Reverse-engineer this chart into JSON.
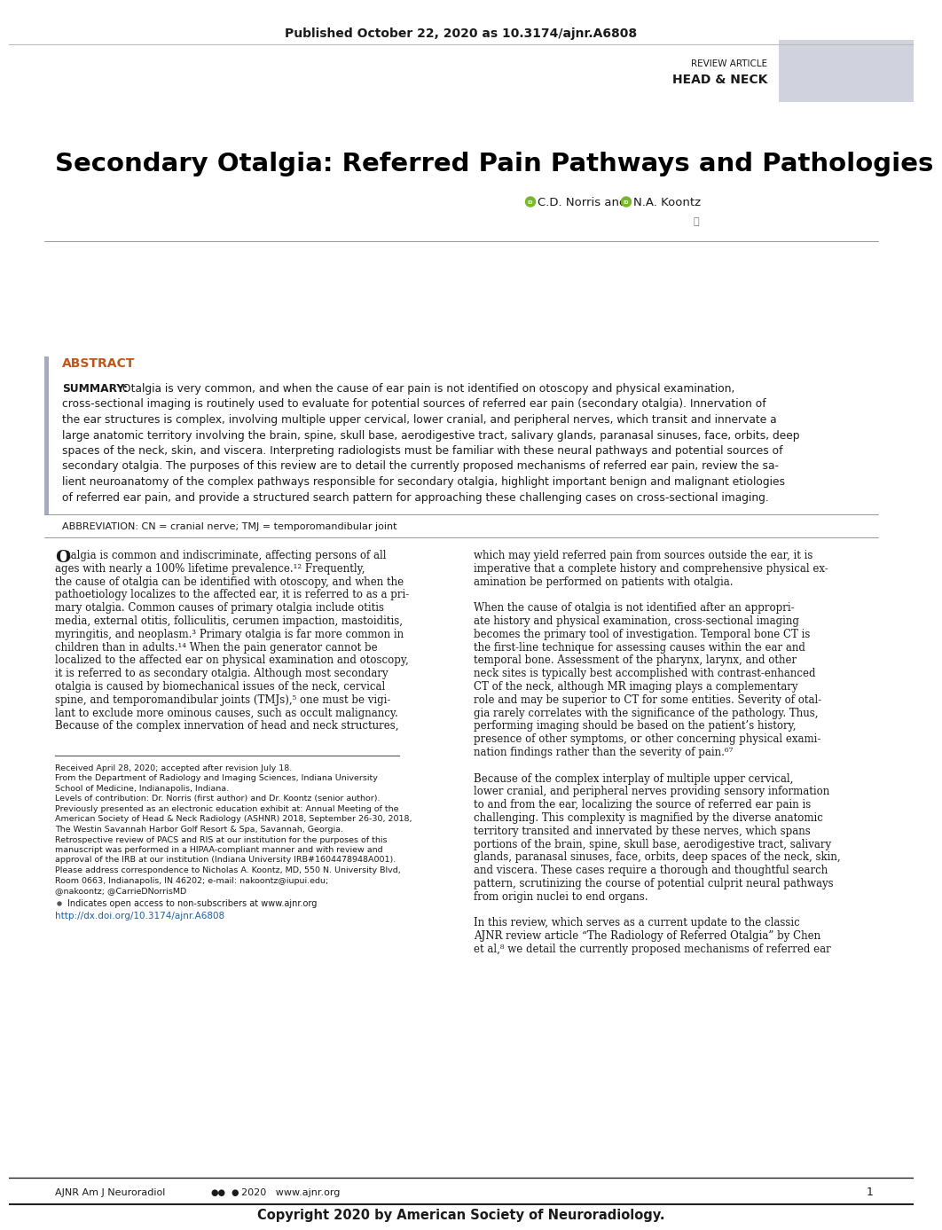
{
  "bg_color": "#ffffff",
  "top_bar_text": "Published October 22, 2020 as 10.3174/ajnr.A6808",
  "review_article_text": "REVIEW ARTICLE",
  "head_neck_text": "HEAD & NECK",
  "sidebar_color": "#aab0c4",
  "title": "Secondary Otalgia: Referred Pain Pathways and Pathologies",
  "orcid_color": "#77b829",
  "abstract_label": "ABSTRACT",
  "abstract_label_color": "#c0571a",
  "abstract_bar_color": "#8890a8",
  "summary_bold": "SUMMARY:",
  "summary_lines": [
    "Otalgia is very common, and when the cause of ear pain is not identified on otoscopy and physical examination,",
    "cross-sectional imaging is routinely used to evaluate for potential sources of referred ear pain (secondary otalgia). Innervation of",
    "the ear structures is complex, involving multiple upper cervical, lower cranial, and peripheral nerves, which transit and innervate a",
    "large anatomic territory involving the brain, spine, skull base, aerodigestive tract, salivary glands, paranasal sinuses, face, orbits, deep",
    "spaces of the neck, skin, and viscera. Interpreting radiologists must be familiar with these neural pathways and potential sources of",
    "secondary otalgia. The purposes of this review are to detail the currently proposed mechanisms of referred ear pain, review the sa-",
    "lient neuroanatomy of the complex pathways responsible for secondary otalgia, highlight important benign and malignant etiologies",
    "of referred ear pain, and provide a structured search pattern for approaching these challenging cases on cross-sectional imaging."
  ],
  "abbreviation_text": "ABBREVIATION: CN = cranial nerve; TMJ = temporomandibular joint",
  "col1_lines": [
    "talgia is common and indiscriminate, affecting persons of all",
    "ages with nearly a 100% lifetime prevalence.¹² Frequently,",
    "the cause of otalgia can be identified with otoscopy, and when the",
    "pathoetiology localizes to the affected ear, it is referred to as a pri-",
    "mary otalgia. Common causes of primary otalgia include otitis",
    "media, external otitis, folliculitis, cerumen impaction, mastoiditis,",
    "myringitis, and neoplasm.³ Primary otalgia is far more common in",
    "children than in adults.¹⁴ When the pain generator cannot be",
    "localized to the affected ear on physical examination and otoscopy,",
    "it is referred to as secondary otalgia. Although most secondary",
    "otalgia is caused by biomechanical issues of the neck, cervical",
    "spine, and temporomandibular joints (TMJs),⁵ one must be vigi-",
    "lant to exclude more ominous causes, such as occult malignancy.",
    "Because of the complex innervation of head and neck structures,"
  ],
  "col2_lines": [
    "which may yield referred pain from sources outside the ear, it is",
    "imperative that a complete history and comprehensive physical ex-",
    "amination be performed on patients with otalgia.",
    "",
    "When the cause of otalgia is not identified after an appropri-",
    "ate history and physical examination, cross-sectional imaging",
    "becomes the primary tool of investigation. Temporal bone CT is",
    "the first-line technique for assessing causes within the ear and",
    "temporal bone. Assessment of the pharynx, larynx, and other",
    "neck sites is typically best accomplished with contrast-enhanced",
    "CT of the neck, although MR imaging plays a complementary",
    "role and may be superior to CT for some entities. Severity of otal-",
    "gia rarely correlates with the significance of the pathology. Thus,",
    "performing imaging should be based on the patient’s history,",
    "presence of other symptoms, or other concerning physical exami-",
    "nation findings rather than the severity of pain.⁶⁷",
    "",
    "Because of the complex interplay of multiple upper cervical,",
    "lower cranial, and peripheral nerves providing sensory information",
    "to and from the ear, localizing the source of referred ear pain is",
    "challenging. This complexity is magnified by the diverse anatomic",
    "territory transited and innervated by these nerves, which spans",
    "portions of the brain, spine, skull base, aerodigestive tract, salivary",
    "glands, paranasal sinuses, face, orbits, deep spaces of the neck, skin,",
    "and viscera. These cases require a thorough and thoughtful search",
    "pattern, scrutinizing the course of potential culprit neural pathways",
    "from origin nuclei to end organs.",
    "",
    "In this review, which serves as a current update to the classic",
    "AJNR review article “The Radiology of Referred Otalgia” by Chen",
    "et al,⁸ we detail the currently proposed mechanisms of referred ear"
  ],
  "footnote_lines": [
    "Received April 28, 2020; accepted after revision July 18.",
    "From the Department of Radiology and Imaging Sciences, Indiana University",
    "School of Medicine, Indianapolis, Indiana.",
    "Levels of contribution: Dr. Norris (first author) and Dr. Koontz (senior author).",
    "Previously presented as an electronic education exhibit at: Annual Meeting of the",
    "American Society of Head & Neck Radiology (ASHNR) 2018, September 26-30, 2018,",
    "The Westin Savannah Harbor Golf Resort & Spa, Savannah, Georgia.",
    "Retrospective review of PACS and RIS at our institution for the purposes of this",
    "manuscript was performed in a HIPAA-compliant manner and with review and",
    "approval of the IRB at our institution (Indiana University IRB#1604478948A001).",
    "Please address correspondence to Nicholas A. Koontz, MD, 550 N. University Blvd,",
    "Room 0663, Indianapolis, IN 46202; e-mail: nakoontz@iupui.edu;",
    "@nakoontz; @CarrieDNorrisMD"
  ],
  "open_access_text": "Indicates open access to non-subscribers at www.ajnr.org",
  "doi_link": "http://dx.doi.org/10.3174/ajnr.A6808",
  "doi_color": "#1a5fa8",
  "footer_left": "AJNR Am J Neuroradiol",
  "footer_right": "2020   www.ajnr.org",
  "footer_page": "1",
  "copyright_text": "Copyright 2020 by American Society of Neuroradiology.",
  "text_color": "#1a1a1a",
  "body_text_color": "#1a1a1a",
  "line_color": "#888888"
}
